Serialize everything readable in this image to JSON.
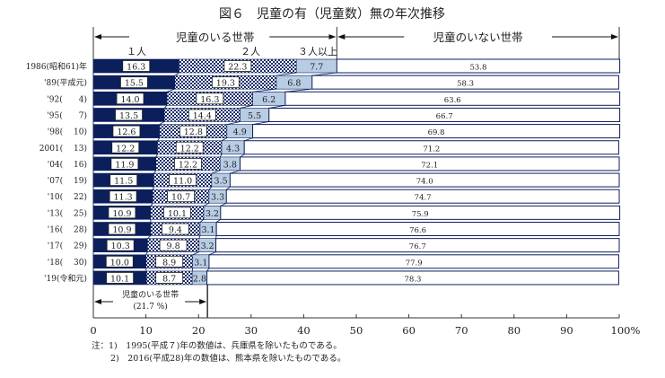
{
  "chart_data": {
    "type": "bar",
    "orientation": "horizontal",
    "stacked": true,
    "title": "図６　児童の有（児童数）無の年次推移",
    "categories": [
      "1986(昭和61)年",
      "'89(平成元)",
      "'92(　　4)",
      "'95(　　7)",
      "'98(　 10)",
      "2001(　 13)",
      "'04(　 16)",
      "'07(　 19)",
      "'10(　 22)",
      "'13(　 25)",
      "'16(　 28)",
      "'17(　 29)",
      "'18(　 30)",
      "'19(令和元)"
    ],
    "group_labels": {
      "with_children": "児童のいる世帯",
      "without_children": "児童のいない世帯"
    },
    "series": [
      {
        "name": "１人",
        "color": "#0b1f5c",
        "values": [
          16.3,
          15.5,
          14.0,
          13.5,
          12.6,
          12.2,
          11.9,
          11.5,
          11.3,
          10.9,
          10.9,
          10.3,
          10.0,
          10.1
        ]
      },
      {
        "name": "２人",
        "color": "#checkered",
        "values": [
          22.3,
          19.3,
          16.3,
          14.4,
          12.8,
          12.2,
          12.2,
          11.0,
          10.7,
          10.1,
          9.4,
          9.8,
          8.9,
          8.7
        ]
      },
      {
        "name": "３人以上",
        "color": "#b8cce4",
        "values": [
          7.7,
          6.8,
          6.2,
          5.5,
          4.9,
          4.3,
          3.8,
          3.5,
          3.3,
          3.2,
          3.1,
          3.2,
          3.1,
          2.8
        ]
      },
      {
        "name": "児童のいない世帯",
        "color": "#ffffff",
        "values": [
          53.8,
          58.3,
          63.6,
          66.7,
          69.8,
          71.2,
          72.1,
          74.0,
          74.7,
          75.9,
          76.6,
          76.7,
          77.9,
          78.3
        ]
      }
    ],
    "xlim": [
      0,
      100
    ],
    "xticks": [
      "0",
      "10",
      "20",
      "30",
      "40",
      "50",
      "60",
      "70",
      "80",
      "90",
      "100%"
    ],
    "annotation": {
      "label": "児童のいる世帯",
      "value_label": "(21.7 %)",
      "value": 21.7
    },
    "notes": [
      "注：1)　1995(平成７)年の数値は、兵庫県を除いたものである。",
      "2)　2016(平成28)年の数値は、熊本県を除いたものである。"
    ],
    "grid": false,
    "legend": "top (inline labels above bars)"
  }
}
